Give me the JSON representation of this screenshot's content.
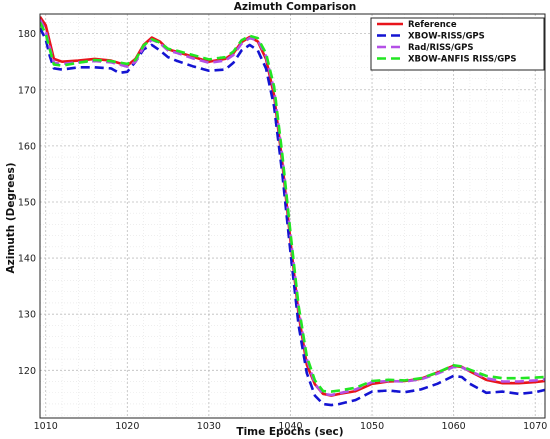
{
  "chart_data": {
    "type": "line",
    "title": "Azimuth Comparison",
    "xlabel": "Time Epochs (sec)",
    "ylabel": "Azimuth (Degrees)",
    "xlim": [
      1009.3,
      1071.2
    ],
    "ylim": [
      111.5,
      183.5
    ],
    "xticks": [
      1010,
      1020,
      1030,
      1040,
      1050,
      1060,
      1070
    ],
    "yticks": [
      120,
      130,
      140,
      150,
      160,
      170,
      180
    ],
    "grid": true,
    "legend_position": "top-right",
    "series": [
      {
        "name": "Reference",
        "color": "#e8141b",
        "dash": "solid",
        "x": [
          1009.3,
          1010.0,
          1010.5,
          1011.0,
          1012,
          1014,
          1016,
          1018,
          1020,
          1021,
          1022,
          1023,
          1024,
          1025,
          1026,
          1028,
          1030,
          1032,
          1033,
          1034,
          1035,
          1036,
          1037,
          1038,
          1039,
          1040,
          1041,
          1042,
          1043,
          1044,
          1045,
          1046,
          1048,
          1050,
          1052,
          1054,
          1056,
          1058,
          1060,
          1061,
          1062,
          1064,
          1066,
          1068,
          1070,
          1071.2
        ],
        "y": [
          183,
          181.5,
          178.5,
          175.5,
          175.0,
          175.2,
          175.5,
          175.2,
          174.3,
          175.5,
          178,
          179.3,
          178.6,
          177.2,
          176.8,
          175.9,
          175.0,
          175.5,
          176.5,
          178.5,
          179.4,
          178.6,
          175.5,
          169,
          157,
          143,
          130,
          121,
          117.5,
          115.8,
          115.5,
          115.8,
          116.3,
          117.6,
          118.0,
          118.1,
          118.5,
          119.6,
          120.8,
          120.6,
          119.8,
          118.3,
          117.7,
          117.7,
          117.9,
          118.1
        ]
      },
      {
        "name": "XBOW-RISS/GPS",
        "color": "#1414d2",
        "dash": "dashed",
        "x": [
          1009.3,
          1010.0,
          1010.5,
          1011.0,
          1012,
          1014,
          1016,
          1018,
          1019,
          1020,
          1021,
          1022,
          1023,
          1024,
          1025,
          1026,
          1028,
          1030,
          1032,
          1033,
          1034,
          1035,
          1036,
          1037,
          1038,
          1039,
          1040,
          1041,
          1042,
          1043,
          1044,
          1045,
          1046,
          1048,
          1050,
          1052,
          1054,
          1056,
          1058,
          1060,
          1061,
          1062,
          1064,
          1066,
          1068,
          1070,
          1071.2
        ],
        "y": [
          181,
          179,
          176,
          173.8,
          173.6,
          174.0,
          174.0,
          173.8,
          173.0,
          173.2,
          175.0,
          177.2,
          178.0,
          177.0,
          175.8,
          175.2,
          174.2,
          173.4,
          173.6,
          174.8,
          177.0,
          178.0,
          177.0,
          173.8,
          167,
          155,
          141,
          128,
          119.5,
          115.5,
          114.0,
          113.8,
          114.0,
          114.7,
          116.2,
          116.4,
          116.1,
          116.6,
          117.6,
          119.0,
          118.8,
          117.6,
          116.0,
          116.2,
          115.8,
          116.1,
          116.5
        ]
      },
      {
        "name": "Rad/RISS/GPS",
        "color": "#b450e6",
        "dash": "dashed",
        "x": [
          1009.3,
          1010.0,
          1010.5,
          1011.0,
          1012,
          1014,
          1016,
          1018,
          1020,
          1021,
          1022,
          1023,
          1024,
          1025,
          1026,
          1028,
          1030,
          1032,
          1033,
          1034,
          1035,
          1036,
          1037,
          1038,
          1039,
          1040,
          1041,
          1042,
          1043,
          1044,
          1045,
          1046,
          1048,
          1050,
          1052,
          1054,
          1056,
          1058,
          1060,
          1061,
          1062,
          1064,
          1066,
          1068,
          1070,
          1071.2
        ],
        "y": [
          182.5,
          180.5,
          177.5,
          174.8,
          174.6,
          174.9,
          175.1,
          174.9,
          174.1,
          175.0,
          177.6,
          178.9,
          178.3,
          177.0,
          176.6,
          175.6,
          174.8,
          175.2,
          176.2,
          178.2,
          179.2,
          178.8,
          176.0,
          170,
          158,
          144,
          131,
          122,
          117.6,
          115.8,
          115.6,
          115.9,
          116.6,
          117.9,
          118.1,
          118.0,
          118.4,
          119.4,
          120.6,
          120.5,
          119.9,
          118.6,
          118.0,
          118.0,
          118.2,
          118.4
        ]
      },
      {
        "name": "XBOW-ANFIS RISS/GPS",
        "color": "#22e622",
        "dash": "dashed",
        "x": [
          1009.3,
          1010.0,
          1010.5,
          1011.0,
          1012,
          1014,
          1016,
          1018,
          1020,
          1021,
          1022,
          1023,
          1024,
          1025,
          1026,
          1028,
          1030,
          1032,
          1033,
          1034,
          1035,
          1036,
          1037,
          1038,
          1039,
          1040,
          1041,
          1042,
          1043,
          1044,
          1045,
          1046,
          1048,
          1050,
          1052,
          1054,
          1056,
          1058,
          1060,
          1061,
          1062,
          1064,
          1066,
          1068,
          1070,
          1071.2
        ],
        "y": [
          182,
          180,
          177.2,
          174.5,
          174.3,
          174.8,
          175.3,
          175.1,
          174.6,
          175.3,
          177.9,
          179.0,
          178.4,
          177.3,
          177.0,
          176.2,
          175.4,
          175.8,
          176.8,
          178.8,
          179.6,
          179.2,
          176.5,
          170.6,
          158.5,
          144.5,
          131.5,
          122.5,
          118.2,
          116.3,
          116.2,
          116.4,
          116.9,
          118.1,
          118.3,
          118.2,
          118.6,
          119.6,
          120.9,
          120.7,
          120.1,
          119.0,
          118.6,
          118.6,
          118.7,
          118.8
        ]
      }
    ]
  }
}
